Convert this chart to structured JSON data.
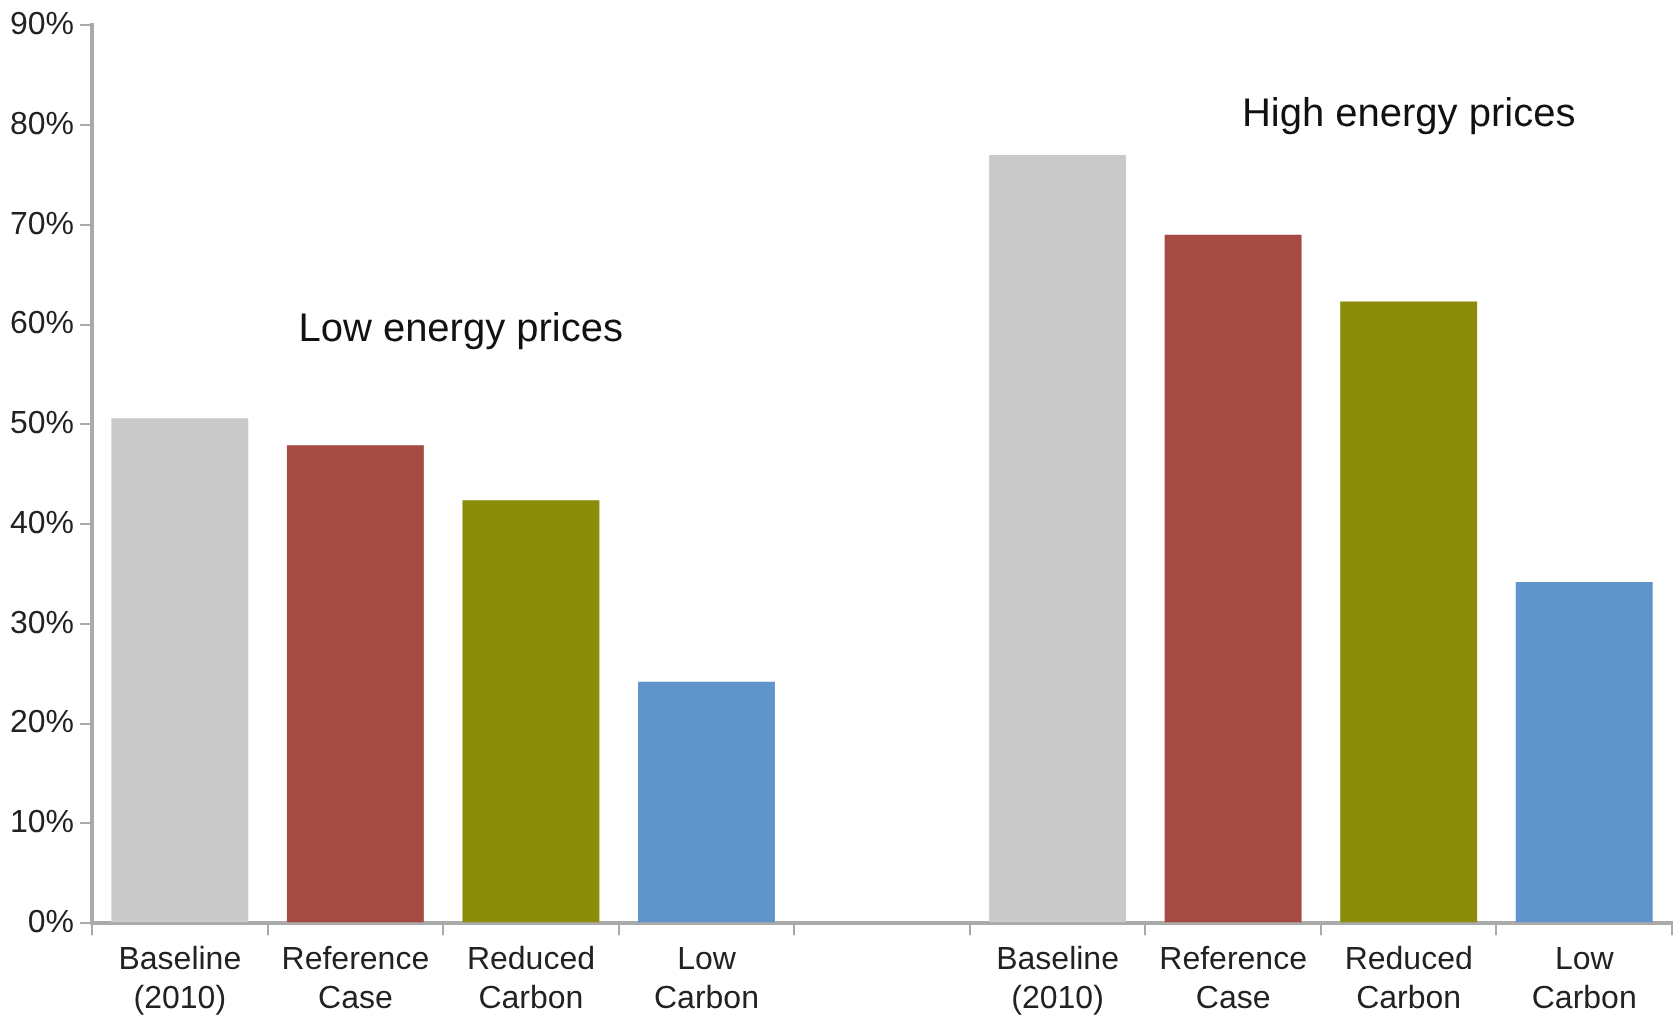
{
  "chart_data": {
    "type": "bar",
    "categories": [
      "Baseline\n(2010)",
      "Reference\nCase",
      "Reduced\nCarbon",
      "Low\nCarbon",
      null,
      "Baseline\n(2010)",
      "Reference\nCase",
      "Reduced\nCarbon",
      "Low\nCarbon"
    ],
    "values": [
      50.6,
      47.9,
      42.4,
      24.2,
      null,
      77,
      69,
      62.3,
      34.2
    ],
    "colors": [
      "#cacaca",
      "#a64a44",
      "#8b8c0a",
      "#6095c9",
      null,
      "#cacaca",
      "#a64a44",
      "#8b8c0a",
      "#6095c9"
    ],
    "ylim": [
      0,
      90
    ],
    "yticks": [
      {
        "value": 0,
        "label": "0%"
      },
      {
        "value": 10,
        "label": "10%"
      },
      {
        "value": 20,
        "label": "20%"
      },
      {
        "value": 30,
        "label": "30%"
      },
      {
        "value": 40,
        "label": "40%"
      },
      {
        "value": 50,
        "label": "50%"
      },
      {
        "value": 60,
        "label": "60%"
      },
      {
        "value": 70,
        "label": "70%"
      },
      {
        "value": 80,
        "label": "80%"
      },
      {
        "value": 90,
        "label": "90%"
      }
    ],
    "annotations": [
      "Low energy prices",
      "High energy prices"
    ],
    "grid": false,
    "legend": false
  }
}
